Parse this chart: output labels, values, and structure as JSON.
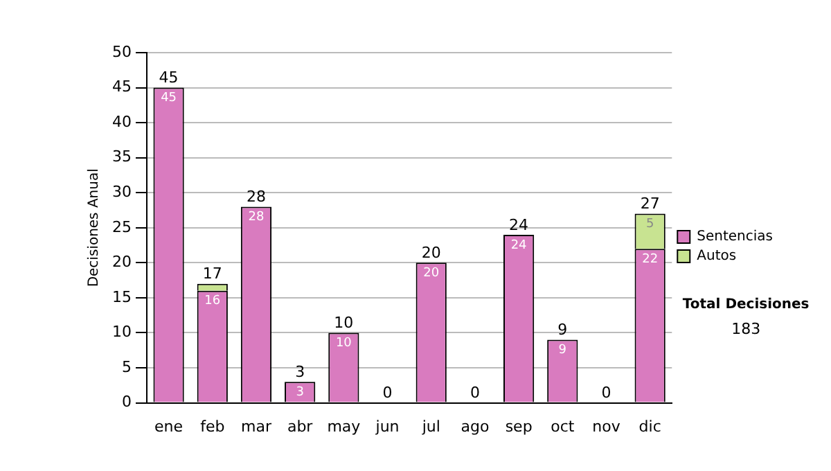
{
  "chart_data": {
    "type": "bar",
    "ylabel": "Decisiones Anual",
    "categories": [
      "ene",
      "feb",
      "mar",
      "abr",
      "may",
      "jun",
      "jul",
      "ago",
      "sep",
      "oct",
      "nov",
      "dic"
    ],
    "series": [
      {
        "name": "Sentencias",
        "color": "#d97bbf",
        "values": [
          45,
          16,
          28,
          3,
          10,
          0,
          20,
          0,
          24,
          9,
          0,
          22
        ],
        "value_labels": [
          "45",
          "16",
          "28",
          "3",
          "10",
          null,
          "20",
          null,
          "24",
          "9",
          null,
          "22"
        ]
      },
      {
        "name": "Autos",
        "color": "#c8e391",
        "values": [
          0,
          1,
          0,
          0,
          0,
          0,
          0,
          0,
          0,
          0,
          0,
          5
        ],
        "value_labels": [
          null,
          null,
          null,
          null,
          null,
          null,
          null,
          null,
          null,
          null,
          null,
          "5"
        ]
      }
    ],
    "stacked": true,
    "totals": [
      "45",
      "17",
      "28",
      "3",
      "10",
      "0",
      "20",
      "0",
      "24",
      "9",
      "0",
      "27"
    ],
    "ylim": [
      0,
      50
    ],
    "yticks": [
      0,
      5,
      10,
      15,
      20,
      25,
      30,
      35,
      40,
      45,
      50
    ],
    "grid": "y",
    "legend": "right",
    "annotations": [
      "Total Decisiones",
      "183"
    ]
  }
}
